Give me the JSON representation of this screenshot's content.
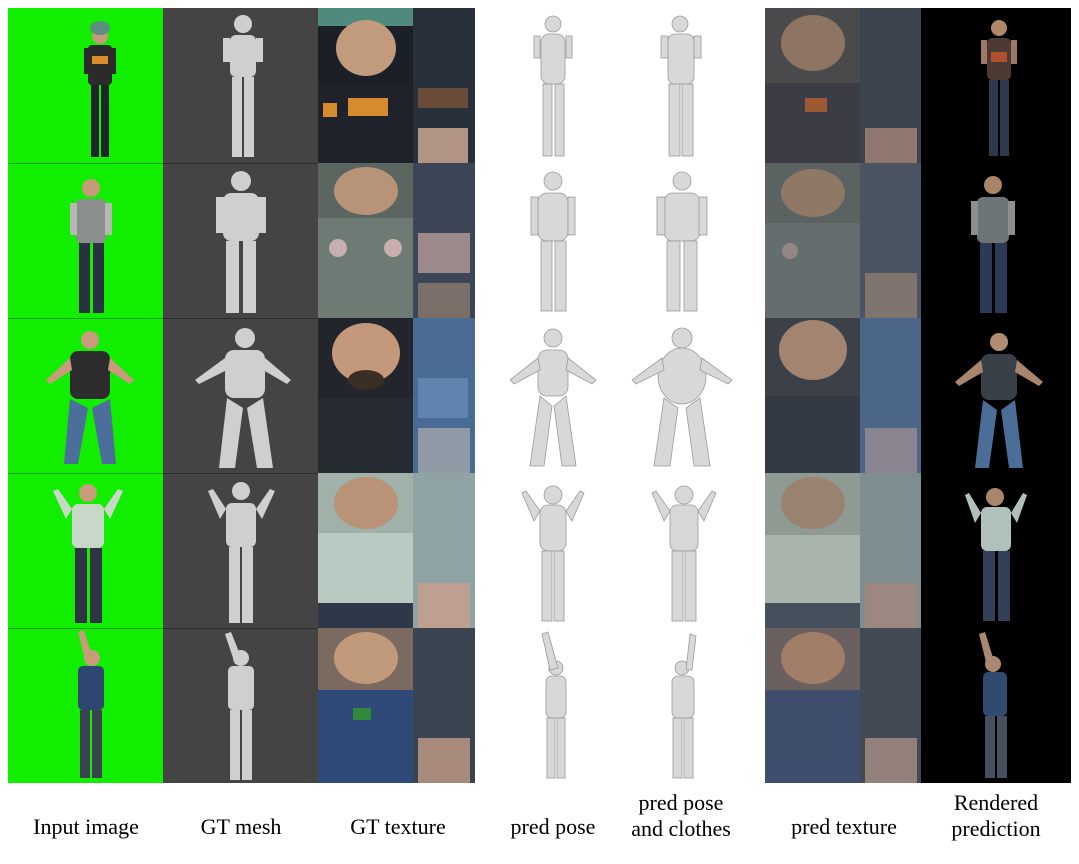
{
  "columns": [
    {
      "key": "input",
      "label": "Input image"
    },
    {
      "key": "gt_mesh",
      "label": "GT mesh"
    },
    {
      "key": "gt_texture",
      "label": "GT texture"
    },
    {
      "key": "pred_pose",
      "label": "pred pose"
    },
    {
      "key": "pred_clothes",
      "label_line1": "pred pose",
      "label_line2": "and clothes"
    },
    {
      "key": "pred_texture",
      "label": "pred texture"
    },
    {
      "key": "rendered",
      "label_line1": "Rendered",
      "label_line2": "prediction"
    }
  ],
  "colors": {
    "input_bg": "#11ee00",
    "mesh_bg": "#444444",
    "render_bg": "#000000",
    "mesh_fill": "#cfcfcf",
    "pred_mesh_fill": "#d8d8d8"
  },
  "rows": 5
}
